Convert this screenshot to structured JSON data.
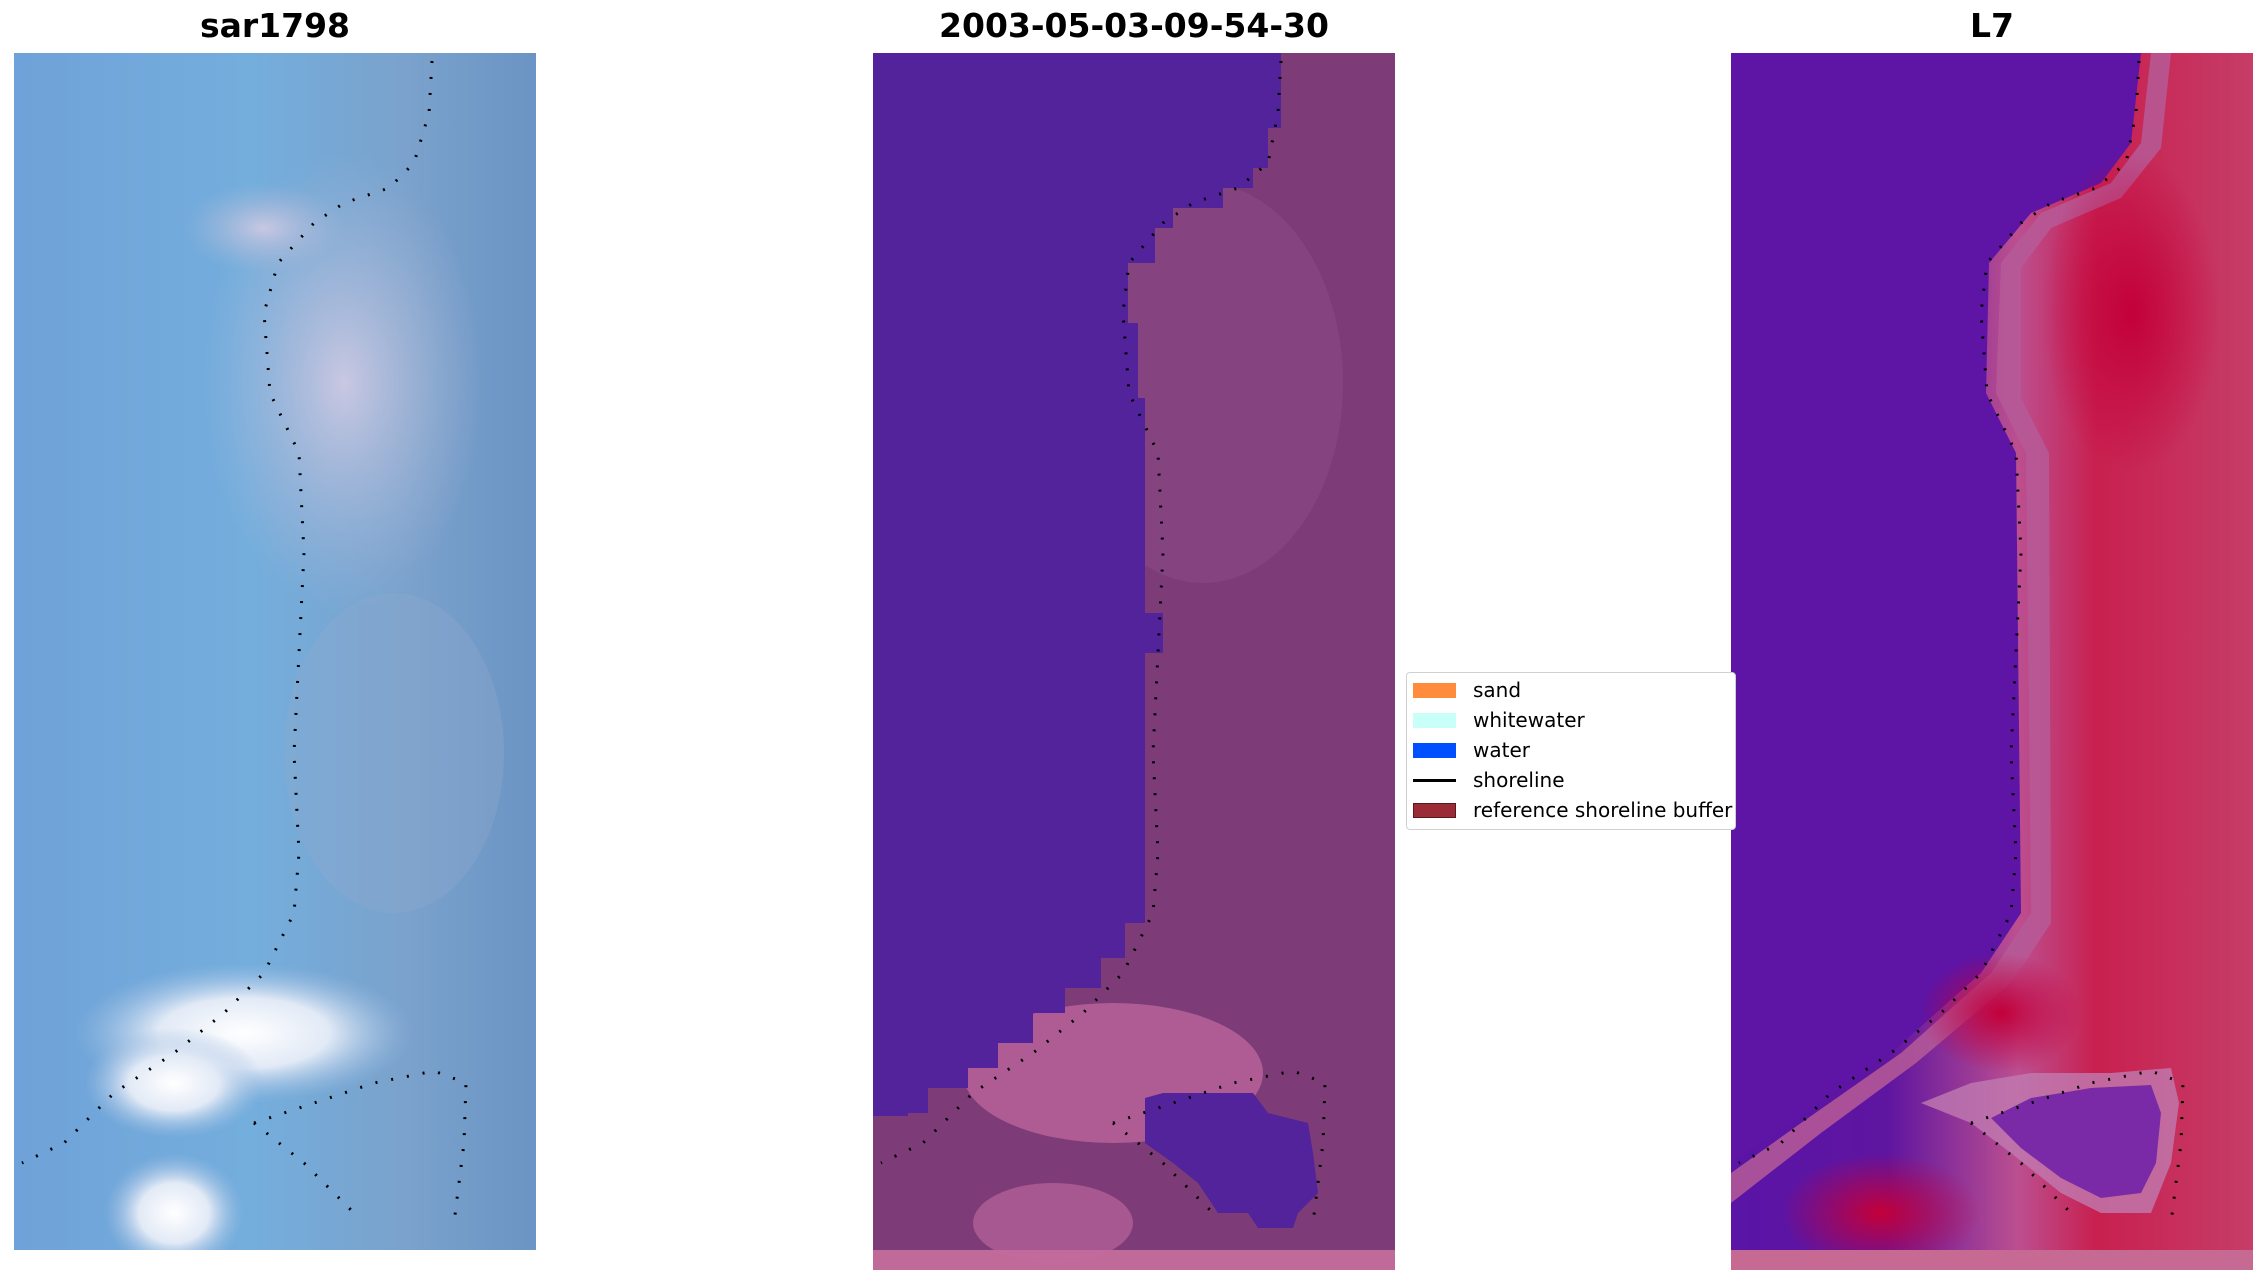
{
  "panels": {
    "left": {
      "title": "sar1798"
    },
    "middle": {
      "title": "2003-05-03-09-54-30"
    },
    "right": {
      "title": "L7"
    }
  },
  "legend": {
    "items": [
      {
        "label": "sand",
        "color": "#ff8c3c"
      },
      {
        "label": "whitewater",
        "color": "#c8fff8"
      },
      {
        "label": "water",
        "color": "#0050ff"
      },
      {
        "label": "shoreline",
        "color": "#000000"
      },
      {
        "label": "reference shoreline buffer",
        "color": "#9b2b36"
      }
    ]
  }
}
